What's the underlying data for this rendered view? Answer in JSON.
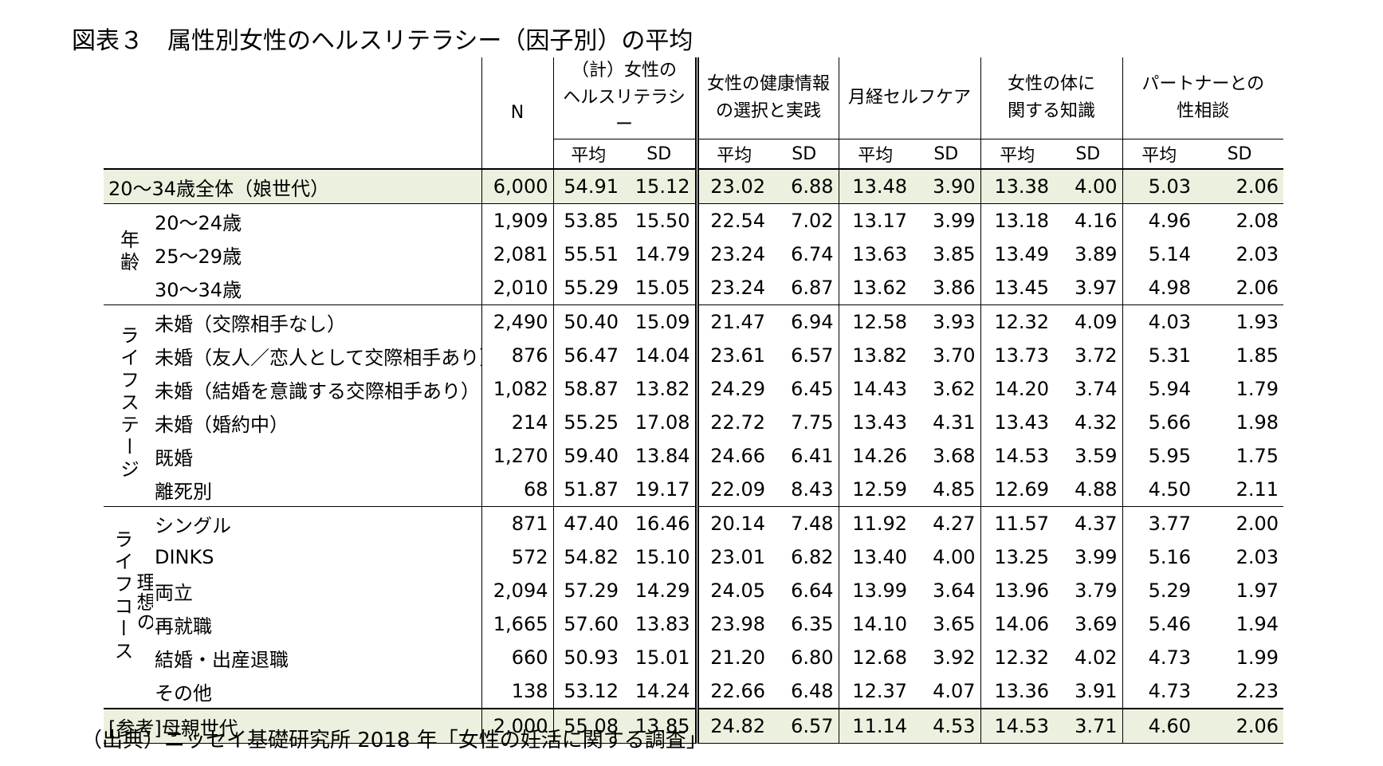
{
  "title": "図表３　属性別女性のヘルスリテラシー（因子別）の平均",
  "source": "（出典）ニッセイ基礎研究所 2018 年「女性の妊活に関する調査」",
  "header": {
    "n": "N",
    "groups": [
      "（計）女性の\nヘルスリテラシー",
      "女性の健康情報\nの選択と実践",
      "月経セルフケア",
      "女性の体に\n関する知識",
      "パートナーとの\n性相談"
    ],
    "mean": "平均",
    "sd": "SD"
  },
  "categories": {
    "age": "年齢",
    "lifestage": "ライフステージ",
    "lifecourse": "ライフコース",
    "ideal": "理想の"
  },
  "rows": {
    "total": {
      "label": "20～34歳全体（娘世代）",
      "values": [
        "6,000",
        "54.91",
        "15.12",
        "23.02",
        "6.88",
        "13.48",
        "3.90",
        "13.38",
        "4.00",
        "5.03",
        "2.06"
      ]
    },
    "age": [
      {
        "label": "20～24歳",
        "values": [
          "1,909",
          "53.85",
          "15.50",
          "22.54",
          "7.02",
          "13.17",
          "3.99",
          "13.18",
          "4.16",
          "4.96",
          "2.08"
        ]
      },
      {
        "label": "25～29歳",
        "values": [
          "2,081",
          "55.51",
          "14.79",
          "23.24",
          "6.74",
          "13.63",
          "3.85",
          "13.49",
          "3.89",
          "5.14",
          "2.03"
        ]
      },
      {
        "label": "30～34歳",
        "values": [
          "2,010",
          "55.29",
          "15.05",
          "23.24",
          "6.87",
          "13.62",
          "3.86",
          "13.45",
          "3.97",
          "4.98",
          "2.06"
        ]
      }
    ],
    "lifestage": [
      {
        "label": "未婚（交際相手なし）",
        "values": [
          "2,490",
          "50.40",
          "15.09",
          "21.47",
          "6.94",
          "12.58",
          "3.93",
          "12.32",
          "4.09",
          "4.03",
          "1.93"
        ]
      },
      {
        "label": "未婚（友人／恋人として交際相手あり）",
        "values": [
          "876",
          "56.47",
          "14.04",
          "23.61",
          "6.57",
          "13.82",
          "3.70",
          "13.73",
          "3.72",
          "5.31",
          "1.85"
        ]
      },
      {
        "label": "未婚（結婚を意識する交際相手あり）",
        "values": [
          "1,082",
          "58.87",
          "13.82",
          "24.29",
          "6.45",
          "14.43",
          "3.62",
          "14.20",
          "3.74",
          "5.94",
          "1.79"
        ]
      },
      {
        "label": "未婚（婚約中）",
        "values": [
          "214",
          "55.25",
          "17.08",
          "22.72",
          "7.75",
          "13.43",
          "4.31",
          "13.43",
          "4.32",
          "5.66",
          "1.98"
        ]
      },
      {
        "label": "既婚",
        "values": [
          "1,270",
          "59.40",
          "13.84",
          "24.66",
          "6.41",
          "14.26",
          "3.68",
          "14.53",
          "3.59",
          "5.95",
          "1.75"
        ]
      },
      {
        "label": "離死別",
        "values": [
          "68",
          "51.87",
          "19.17",
          "22.09",
          "8.43",
          "12.59",
          "4.85",
          "12.69",
          "4.88",
          "4.50",
          "2.11"
        ]
      }
    ],
    "lifecourse": [
      {
        "label": "シングル",
        "values": [
          "871",
          "47.40",
          "16.46",
          "20.14",
          "7.48",
          "11.92",
          "4.27",
          "11.57",
          "4.37",
          "3.77",
          "2.00"
        ]
      },
      {
        "label": "DINKS",
        "values": [
          "572",
          "54.82",
          "15.10",
          "23.01",
          "6.82",
          "13.40",
          "4.00",
          "13.25",
          "3.99",
          "5.16",
          "2.03"
        ]
      },
      {
        "label": "両立",
        "values": [
          "2,094",
          "57.29",
          "14.29",
          "24.05",
          "6.64",
          "13.99",
          "3.64",
          "13.96",
          "3.79",
          "5.29",
          "1.97"
        ]
      },
      {
        "label": "再就職",
        "values": [
          "1,665",
          "57.60",
          "13.83",
          "23.98",
          "6.35",
          "14.10",
          "3.65",
          "14.06",
          "3.69",
          "5.46",
          "1.94"
        ]
      },
      {
        "label": "結婚・出産退職",
        "values": [
          "660",
          "50.93",
          "15.01",
          "21.20",
          "6.80",
          "12.68",
          "3.92",
          "12.32",
          "4.02",
          "4.73",
          "1.99"
        ]
      },
      {
        "label": "その他",
        "values": [
          "138",
          "53.12",
          "14.24",
          "22.66",
          "6.48",
          "12.37",
          "4.07",
          "13.36",
          "3.91",
          "4.73",
          "2.23"
        ]
      }
    ],
    "mother": {
      "label": "[参考]母親世代",
      "values": [
        "2,000",
        "55.08",
        "13.85",
        "24.82",
        "6.57",
        "11.14",
        "4.53",
        "14.53",
        "3.71",
        "4.60",
        "2.06"
      ]
    }
  }
}
